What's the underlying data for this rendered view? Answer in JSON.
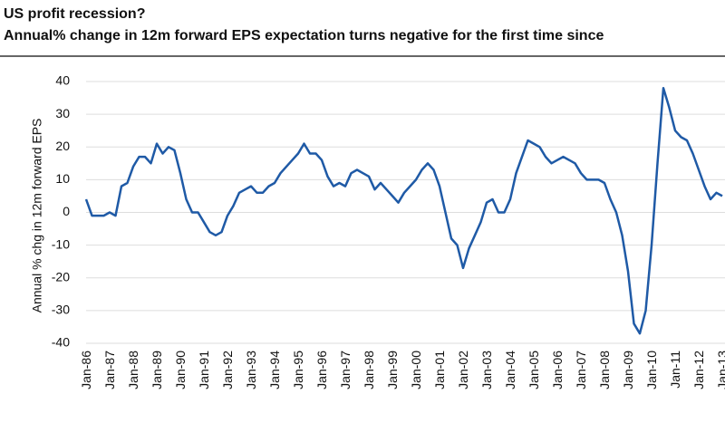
{
  "chart_data": {
    "type": "line",
    "title": "US profit recession?",
    "subtitle": "Annual% change in 12m forward EPS expectation turns negative for the first time since",
    "y_label": "Annual % chg in 12m forward EPS",
    "categories": [
      "Jan-86",
      null,
      null,
      null,
      "Jan-87",
      null,
      null,
      null,
      "Jan-88",
      null,
      null,
      null,
      "Jan-89",
      null,
      null,
      null,
      "Jan-90",
      null,
      null,
      null,
      "Jan-91",
      null,
      null,
      null,
      "Jan-92",
      null,
      null,
      null,
      "Jan-93",
      null,
      null,
      null,
      "Jan-94",
      null,
      null,
      null,
      "Jan-95",
      null,
      null,
      null,
      "Jan-96",
      null,
      null,
      null,
      "Jan-97",
      null,
      null,
      null,
      "Jan-98",
      null,
      null,
      null,
      "Jan-99",
      null,
      null,
      null,
      "Jan-00",
      null,
      null,
      null,
      "Jan-01",
      null,
      null,
      null,
      "Jan-02",
      null,
      null,
      null,
      "Jan-03",
      null,
      null,
      null,
      "Jan-04",
      null,
      null,
      null,
      "Jan-05",
      null,
      null,
      null,
      "Jan-06",
      null,
      null,
      null,
      "Jan-07",
      null,
      null,
      null,
      "Jan-08",
      null,
      null,
      null,
      "Jan-09",
      null,
      null,
      null,
      "Jan-10",
      null,
      null,
      null,
      "Jan-11",
      null,
      null,
      null,
      "Jan-12",
      null,
      null,
      null,
      "Jan-13"
    ],
    "values": [
      4,
      -1,
      -1,
      -1,
      0,
      -1,
      8,
      9,
      14,
      17,
      17,
      15,
      21,
      18,
      20,
      19,
      12,
      4,
      0,
      0,
      -3,
      -6,
      -7,
      -6,
      -1,
      2,
      6,
      7,
      8,
      6,
      6,
      8,
      9,
      12,
      14,
      16,
      18,
      21,
      18,
      18,
      16,
      11,
      8,
      9,
      8,
      12,
      13,
      12,
      11,
      7,
      9,
      7,
      5,
      3,
      6,
      8,
      10,
      13,
      15,
      13,
      8,
      0,
      -8,
      -10,
      -17,
      -11,
      -7,
      -3,
      3,
      4,
      0,
      0,
      4,
      12,
      17,
      22,
      21,
      20,
      17,
      15,
      16,
      17,
      16,
      15,
      12,
      10,
      10,
      10,
      9,
      4,
      0,
      -7,
      -18,
      -34,
      -37,
      -30,
      -10,
      15,
      38,
      32,
      25,
      23,
      22,
      18,
      13,
      8,
      4,
      6,
      5
    ],
    "color": "#1f5aa6",
    "ylim": [
      -40,
      40
    ],
    "yticks": [
      -40,
      -30,
      -20,
      -10,
      0,
      10,
      20,
      30,
      40
    ],
    "grid": true
  }
}
